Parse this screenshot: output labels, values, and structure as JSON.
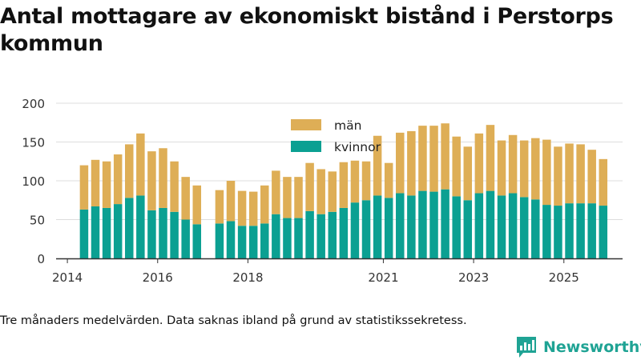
{
  "title": "Antal mottagare av ekonomiskt bistånd i Perstorps kommun",
  "note": "Tre månaders medelvärden. Data saknas ibland på grund av statistikssekretess.",
  "brand": "Newsworthy",
  "colors": {
    "women": "#0ba092",
    "men": "#deae56",
    "grid": "#dddddd",
    "axis": "#333333",
    "text": "#333333"
  },
  "chart_data": {
    "type": "bar",
    "stacked": true,
    "title": "Antal mottagare av ekonomiskt bistånd i Perstorps kommun",
    "xlabel": "",
    "ylabel": "",
    "ylim": [
      0,
      200
    ],
    "yticks": [
      0,
      50,
      100,
      150,
      200
    ],
    "xlim": [
      2013.75,
      2026.3
    ],
    "xticks": [
      {
        "value": 2014,
        "label": "2014"
      },
      {
        "value": 2016,
        "label": "2016"
      },
      {
        "value": 2018,
        "label": "2018"
      },
      {
        "value": 2021,
        "label": "2021"
      },
      {
        "value": 2023,
        "label": "2023"
      },
      {
        "value": 2025,
        "label": "2025"
      }
    ],
    "legend": {
      "position": "top-center",
      "order": [
        "män",
        "kvinnor"
      ]
    },
    "x": [
      2014.37,
      2014.62,
      2014.87,
      2015.12,
      2015.37,
      2015.62,
      2015.87,
      2016.12,
      2016.37,
      2016.62,
      2016.87,
      2017.37,
      2017.62,
      2017.87,
      2018.12,
      2018.37,
      2018.62,
      2018.87,
      2019.12,
      2019.37,
      2019.62,
      2019.87,
      2020.12,
      2020.37,
      2020.62,
      2020.87,
      2021.12,
      2021.37,
      2021.62,
      2021.87,
      2022.12,
      2022.37,
      2022.62,
      2022.87,
      2023.12,
      2023.37,
      2023.62,
      2023.87,
      2024.12,
      2024.37,
      2024.62,
      2024.87,
      2025.12,
      2025.37,
      2025.62,
      2025.87
    ],
    "series": [
      {
        "name": "kvinnor",
        "values": [
          63,
          67,
          65,
          70,
          78,
          81,
          62,
          65,
          60,
          50,
          44,
          45,
          48,
          42,
          42,
          45,
          57,
          52,
          52,
          61,
          57,
          60,
          65,
          72,
          75,
          81,
          78,
          84,
          81,
          87,
          86,
          89,
          80,
          75,
          84,
          87,
          81,
          84,
          79,
          76,
          69,
          68,
          71,
          71,
          71,
          68
        ]
      },
      {
        "name": "män",
        "values": [
          57,
          60,
          60,
          64,
          69,
          80,
          76,
          77,
          65,
          55,
          50,
          43,
          52,
          45,
          44,
          49,
          56,
          53,
          53,
          62,
          58,
          52,
          59,
          54,
          50,
          77,
          45,
          78,
          83,
          84,
          85,
          85,
          77,
          69,
          77,
          85,
          71,
          75,
          73,
          79,
          84,
          76,
          77,
          76,
          69,
          60
        ]
      }
    ]
  }
}
